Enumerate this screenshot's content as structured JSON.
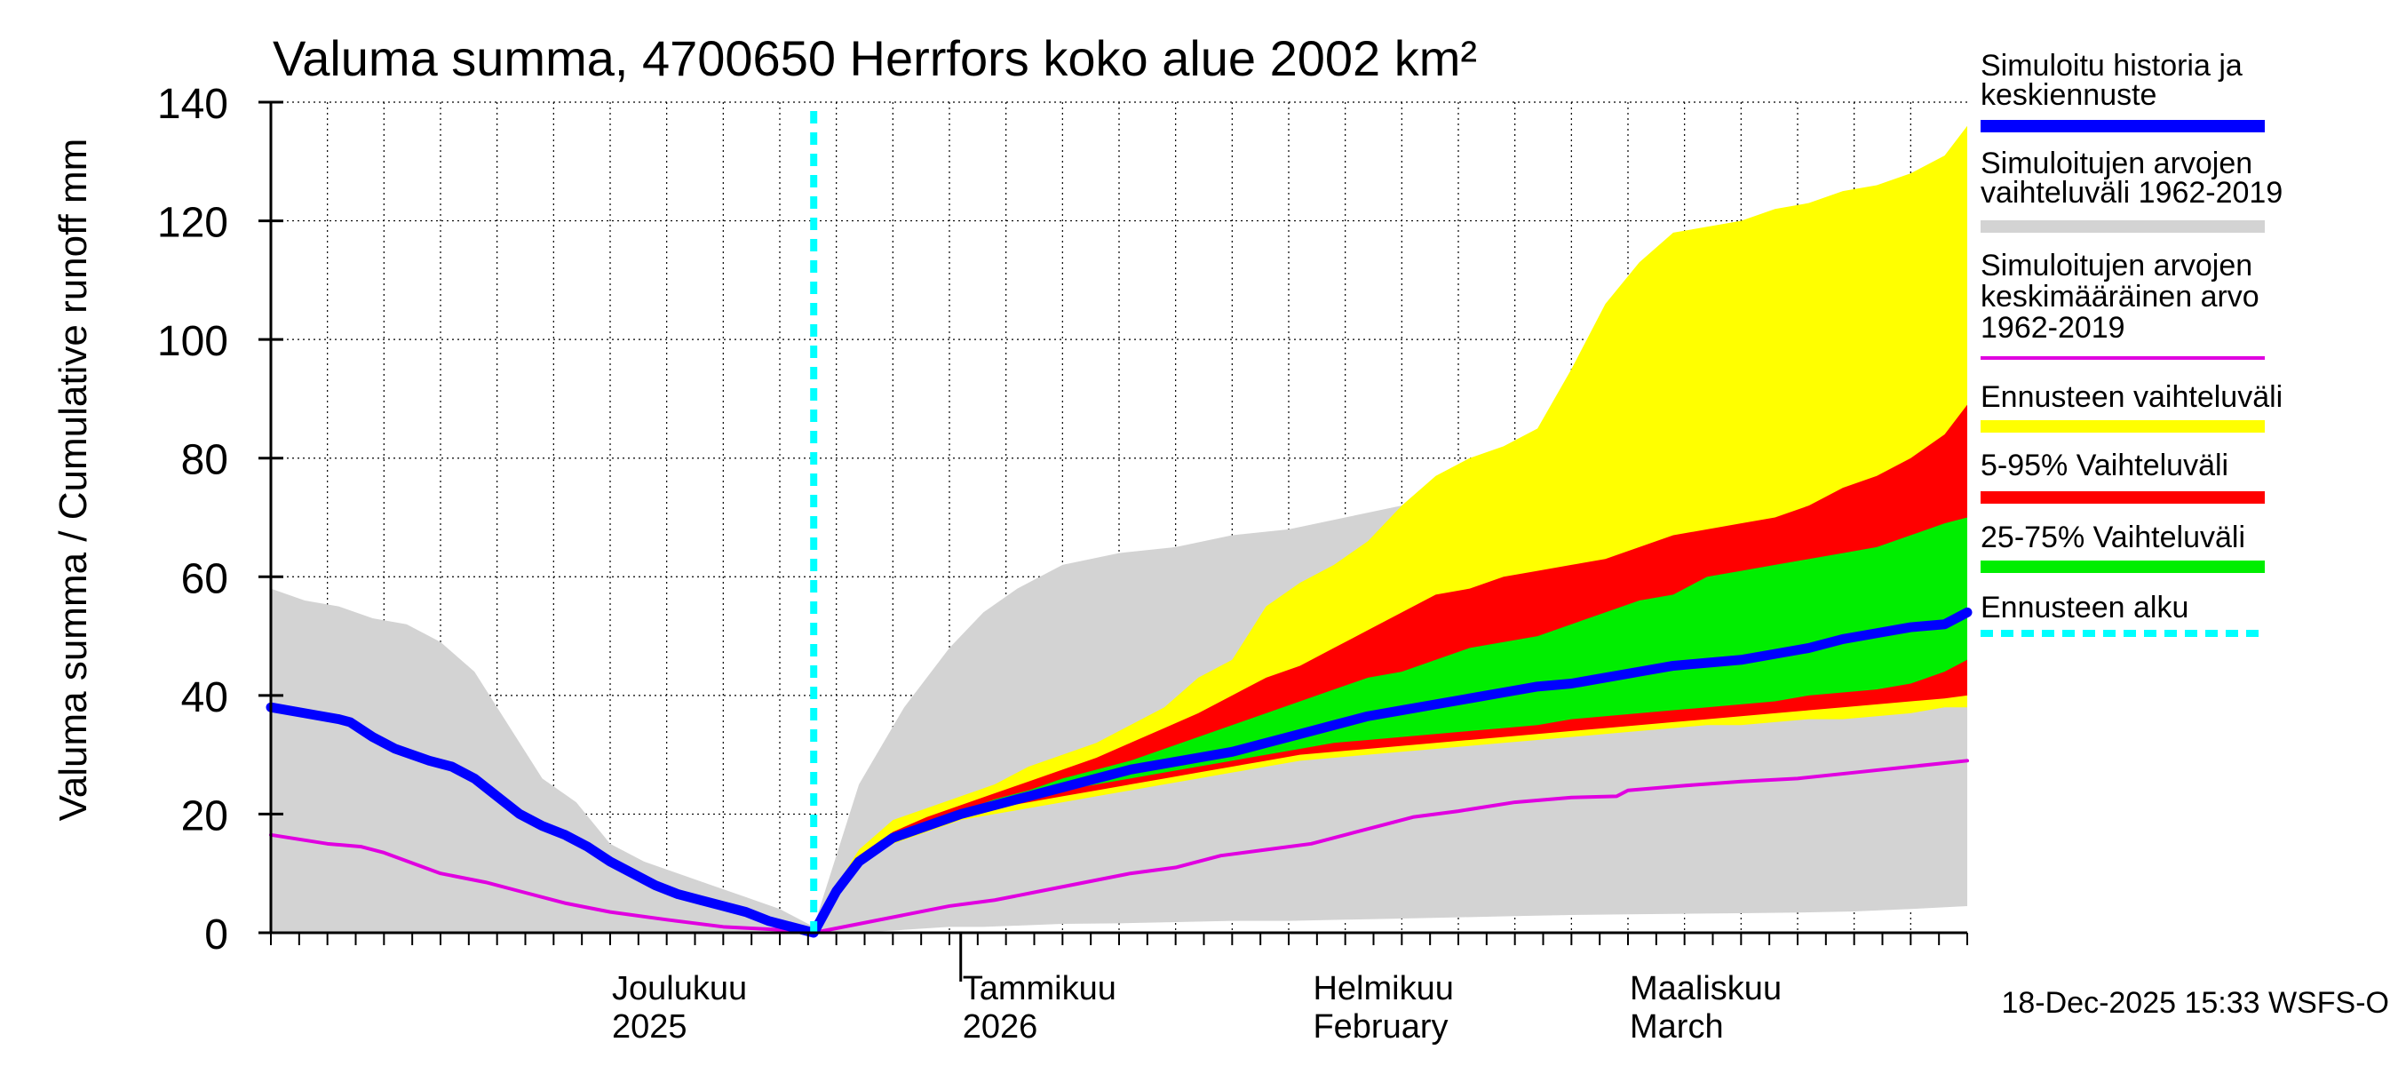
{
  "chart_data": {
    "type": "area",
    "title": "Valuma summa, 4700650 Herrfors koko alue 2002 km²",
    "ylabel": "Valuma summa / Cumulative runoff    mm",
    "xlabel": "",
    "ylim": [
      0,
      140
    ],
    "yticks": [
      0,
      20,
      40,
      60,
      80,
      100,
      120,
      140
    ],
    "grid": true,
    "legend_position": "right",
    "x_unit": "days since 2025-11-01",
    "xlim": [
      0,
      150
    ],
    "forecast_start_day": 48,
    "month_labels": [
      {
        "day": 30,
        "line1": "Joulukuu",
        "line2": "2025"
      },
      {
        "day": 61,
        "line1": "Tammikuu",
        "line2": "2026"
      },
      {
        "day": 92,
        "line1": "Helmikuu",
        "line2": "February"
      },
      {
        "day": 120,
        "line1": "Maaliskuu",
        "line2": "March"
      }
    ],
    "year_tick_day": 61,
    "timestamp": "18-Dec-2025 15:33 WSFS-O",
    "legend": [
      {
        "label": "Simuloitu historia ja keskiennuste",
        "color": "#0000ff",
        "kind": "thick"
      },
      {
        "label": "Simuloitujen arvojen vaihteluväli 1962-2019",
        "color": "#d3d3d3",
        "kind": "thick"
      },
      {
        "label": "Simuloitujen arvojen keskimääräinen arvo\n   1962-2019",
        "color": "#e000e0",
        "kind": "thin"
      },
      {
        "label": "Ennusteen vaihteluväli",
        "color": "#ffff00",
        "kind": "thick"
      },
      {
        "label": "5-95% Vaihteluväli",
        "color": "#ff0000",
        "kind": "thick"
      },
      {
        "label": "25-75% Vaihteluväli",
        "color": "#00ee00",
        "kind": "thick"
      },
      {
        "label": "Ennusteen alku",
        "color": "#00ffff",
        "kind": "dashed"
      }
    ],
    "series": [
      {
        "name": "hist_range",
        "color": "#d3d3d3",
        "x": [
          0,
          3,
          6,
          9,
          12,
          15,
          18,
          21,
          24,
          27,
          30,
          33,
          36,
          39,
          42,
          45,
          48,
          52,
          56,
          60,
          63,
          66,
          70,
          75,
          80,
          85,
          90,
          95,
          100,
          105,
          110,
          115,
          120,
          125,
          130,
          135,
          140,
          145,
          150
        ],
        "upper": [
          58,
          56,
          55,
          53,
          52,
          49,
          44,
          35,
          26,
          22,
          15,
          12,
          10,
          8,
          6,
          4,
          1,
          25,
          38,
          48,
          54,
          58,
          62,
          64,
          65,
          67,
          68,
          70,
          72,
          76,
          80,
          85,
          92,
          99,
          102,
          104,
          106,
          106,
          108
        ],
        "lower": [
          0,
          0,
          0,
          0,
          0,
          0,
          0,
          0,
          0,
          0,
          0,
          0,
          0,
          0,
          0,
          0,
          0,
          0,
          0.5,
          1,
          1,
          1.2,
          1.5,
          1.6,
          1.8,
          2,
          2,
          2.2,
          2.4,
          2.6,
          2.8,
          3,
          3.1,
          3.2,
          3.3,
          3.4,
          3.6,
          4,
          4.5
        ]
      },
      {
        "name": "hist_mean",
        "color": "#e000e0",
        "x": [
          0,
          5,
          8,
          10,
          15,
          19,
          22,
          26,
          30,
          35,
          40,
          45,
          48,
          52,
          56,
          60,
          64,
          68,
          72,
          76,
          80,
          84,
          88,
          92,
          95,
          98,
          101,
          105,
          110,
          115,
          119,
          120,
          125,
          130,
          135,
          140,
          145,
          150
        ],
        "values": [
          16.5,
          15,
          14.5,
          13.5,
          10,
          8.5,
          7,
          5,
          3.5,
          2.2,
          1,
          0.5,
          0,
          1.5,
          3,
          4.5,
          5.5,
          7,
          8.5,
          10,
          11,
          13,
          14,
          15,
          16.5,
          18,
          19.5,
          20.5,
          22,
          22.8,
          23,
          24,
          24.8,
          25.5,
          26,
          27,
          28,
          29
        ]
      },
      {
        "name": "forecast_range",
        "color": "#ffff00",
        "x": [
          48,
          50,
          52,
          55,
          58,
          61,
          64,
          67,
          70,
          73,
          76,
          79,
          82,
          85,
          88,
          91,
          94,
          97,
          100,
          103,
          106,
          109,
          112,
          115,
          118,
          121,
          124,
          127,
          130,
          133,
          136,
          139,
          142,
          145,
          148,
          150
        ],
        "upper": [
          0,
          8,
          14,
          19,
          21,
          23,
          25,
          28,
          30,
          32,
          35,
          38,
          43,
          46,
          55,
          59,
          62,
          66,
          72,
          77,
          80,
          82,
          85,
          95,
          106,
          113,
          118,
          119,
          120,
          122,
          123,
          125,
          126,
          128,
          131,
          136
        ],
        "lower": [
          0,
          7,
          12,
          15,
          17,
          19,
          20,
          21,
          22,
          23,
          24,
          25,
          26,
          27,
          28,
          29,
          29.5,
          30,
          30.5,
          31,
          31.5,
          32,
          32.5,
          33,
          33.5,
          34,
          34.5,
          35,
          35,
          35.5,
          36,
          36,
          36.5,
          37,
          38,
          38
        ]
      },
      {
        "name": "range_5_95",
        "color": "#ff0000",
        "x": [
          48,
          50,
          52,
          55,
          58,
          61,
          64,
          67,
          70,
          73,
          76,
          79,
          82,
          85,
          88,
          91,
          94,
          97,
          100,
          103,
          106,
          109,
          112,
          115,
          118,
          121,
          124,
          127,
          130,
          133,
          136,
          139,
          142,
          145,
          148,
          150
        ],
        "upper": [
          0,
          8,
          13,
          17,
          19.5,
          21.5,
          23.5,
          25.5,
          27.5,
          29.5,
          32,
          34.5,
          37,
          40,
          43,
          45,
          48,
          51,
          54,
          57,
          58,
          60,
          61,
          62,
          63,
          65,
          67,
          68,
          69,
          70,
          72,
          75,
          77,
          80,
          84,
          89
        ],
        "lower": [
          0,
          7,
          12,
          15.5,
          17.5,
          19.5,
          21,
          22,
          23,
          24,
          25,
          26,
          27,
          28,
          29,
          30,
          30.5,
          31,
          31.5,
          32,
          32.5,
          33,
          33.5,
          34,
          34.5,
          35,
          35.5,
          36,
          36.5,
          37,
          37.5,
          38,
          38.5,
          39,
          39.5,
          40
        ]
      },
      {
        "name": "range_25_75",
        "color": "#00ee00",
        "x": [
          48,
          50,
          52,
          55,
          58,
          61,
          64,
          67,
          70,
          73,
          76,
          79,
          82,
          85,
          88,
          91,
          94,
          97,
          100,
          103,
          106,
          109,
          112,
          115,
          118,
          121,
          124,
          127,
          130,
          133,
          136,
          139,
          142,
          145,
          148,
          150
        ],
        "upper": [
          0,
          7.5,
          12.5,
          16.5,
          18.5,
          20.5,
          22.5,
          24,
          26,
          27.5,
          29,
          31,
          33,
          35,
          37,
          39,
          41,
          43,
          44,
          46,
          48,
          49,
          50,
          52,
          54,
          56,
          57,
          60,
          61,
          62,
          63,
          64,
          65,
          67,
          69,
          70
        ],
        "lower": [
          0,
          7,
          12,
          15.5,
          17.5,
          19.5,
          21,
          22.5,
          24,
          25,
          26,
          27,
          28,
          29,
          30,
          31,
          32,
          32.5,
          33,
          33.5,
          34,
          34.5,
          35,
          36,
          36.5,
          37,
          37.5,
          38,
          38.5,
          39,
          40,
          40.5,
          41,
          42,
          44,
          46
        ]
      },
      {
        "name": "sim_history_and_forecast",
        "color": "#0000ff",
        "x": [
          0,
          3,
          6,
          7,
          9,
          11,
          14,
          16,
          18,
          20,
          22,
          24,
          26,
          28,
          30,
          32,
          34,
          36,
          38,
          40,
          42,
          44,
          46,
          48,
          50,
          52,
          55,
          58,
          61,
          64,
          67,
          70,
          73,
          76,
          79,
          82,
          85,
          88,
          91,
          94,
          97,
          100,
          103,
          106,
          109,
          112,
          115,
          118,
          121,
          124,
          127,
          130,
          133,
          136,
          139,
          142,
          145,
          148,
          150
        ],
        "values": [
          38,
          37,
          36,
          35.5,
          33,
          31,
          29,
          28,
          26,
          23,
          20,
          18,
          16.5,
          14.5,
          12,
          10,
          8,
          6.5,
          5.5,
          4.5,
          3.5,
          2,
          1,
          0,
          7,
          12,
          16,
          18,
          20,
          21.5,
          23,
          24.5,
          26,
          27.5,
          28.5,
          29.5,
          30.5,
          32,
          33.5,
          35,
          36.5,
          37.5,
          38.5,
          39.5,
          40.5,
          41.5,
          42,
          43,
          44,
          45,
          45.5,
          46,
          47,
          48,
          49.5,
          50.5,
          51.5,
          52,
          54
        ]
      }
    ]
  }
}
